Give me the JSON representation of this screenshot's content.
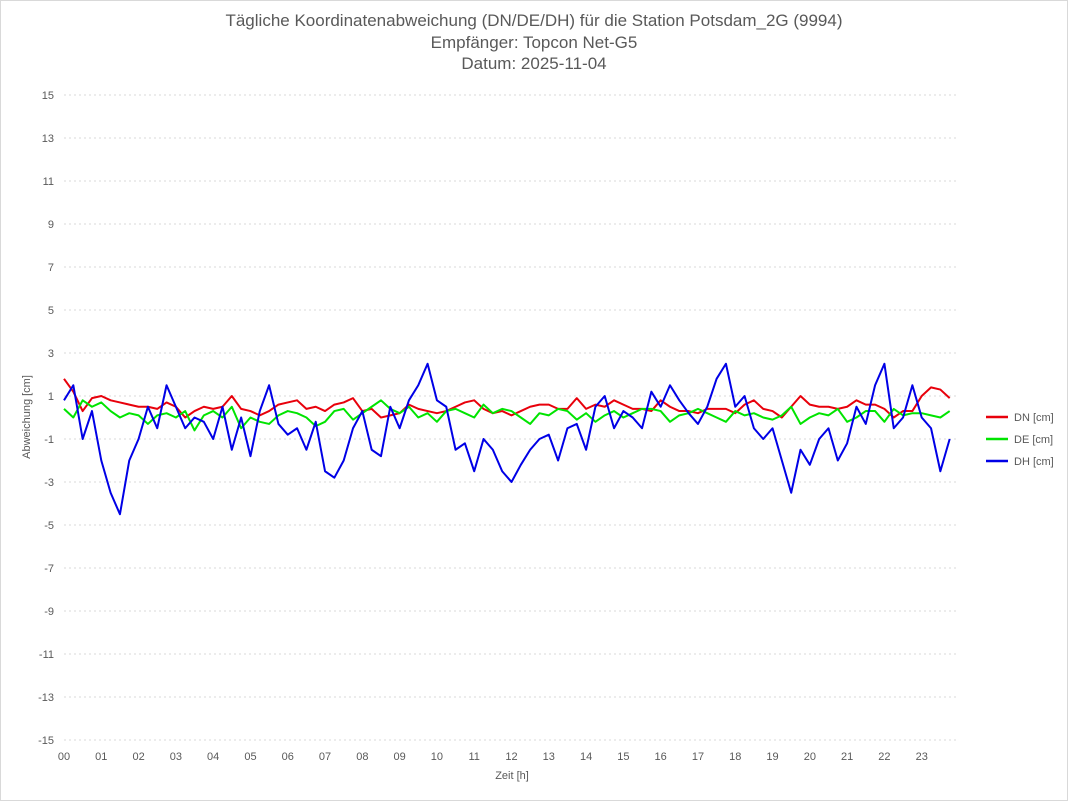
{
  "chart_data": {
    "type": "line",
    "title": "Tägliche Koordinatenabweichung (DN/DE/DH) für die Station Potsdam_2G (9994)",
    "subtitle_lines": [
      "Empfänger: Topcon Net-G5",
      "Datum: 2025-11-04"
    ],
    "xlabel": "Zeit [h]",
    "ylabel": "Abweichung [cm]",
    "xlim": [
      0,
      24
    ],
    "ylim": [
      -15,
      15
    ],
    "x_ticks": [
      "00",
      "01",
      "02",
      "03",
      "04",
      "05",
      "06",
      "07",
      "08",
      "09",
      "10",
      "11",
      "12",
      "13",
      "14",
      "15",
      "16",
      "17",
      "18",
      "19",
      "20",
      "21",
      "22",
      "23"
    ],
    "y_ticks": [
      "15",
      "13",
      "11",
      "9",
      "7",
      "5",
      "3",
      "1",
      "-1",
      "-3",
      "-5",
      "-7",
      "-9",
      "-11",
      "-13",
      "-15"
    ],
    "y_tick_values": [
      15,
      13,
      11,
      9,
      7,
      5,
      3,
      1,
      -1,
      -3,
      -5,
      -7,
      -9,
      -11,
      -13,
      -15
    ],
    "grid": true,
    "legend_position": "right",
    "sample_interval_h": 0.25,
    "series": [
      {
        "name": "DN [cm]",
        "color": "#e8000b",
        "values": [
          1.8,
          1.2,
          0.3,
          0.9,
          1.0,
          0.8,
          0.7,
          0.6,
          0.5,
          0.5,
          0.4,
          0.7,
          0.5,
          0.0,
          0.3,
          0.5,
          0.4,
          0.5,
          1.0,
          0.4,
          0.3,
          0.1,
          0.3,
          0.6,
          0.7,
          0.8,
          0.4,
          0.5,
          0.3,
          0.6,
          0.7,
          0.9,
          0.3,
          0.4,
          0.0,
          0.1,
          0.2,
          0.6,
          0.4,
          0.3,
          0.2,
          0.3,
          0.5,
          0.7,
          0.8,
          0.4,
          0.2,
          0.3,
          0.1,
          0.3,
          0.5,
          0.6,
          0.6,
          0.4,
          0.4,
          0.9,
          0.4,
          0.6,
          0.5,
          0.8,
          0.6,
          0.4,
          0.4,
          0.3,
          0.8,
          0.5,
          0.3,
          0.3,
          0.2,
          0.4,
          0.4,
          0.4,
          0.2,
          0.6,
          0.8,
          0.4,
          0.3,
          0.0,
          0.5,
          1.0,
          0.6,
          0.5,
          0.5,
          0.4,
          0.5,
          0.8,
          0.6,
          0.6,
          0.4,
          0.0,
          0.3,
          0.3,
          1.0,
          1.4,
          1.3,
          0.9
        ]
      },
      {
        "name": "DE [cm]",
        "color": "#00e400",
        "values": [
          0.4,
          0.0,
          0.8,
          0.5,
          0.7,
          0.3,
          0.0,
          0.2,
          0.1,
          -0.3,
          0.1,
          0.2,
          0.0,
          0.3,
          -0.6,
          0.1,
          0.3,
          0.0,
          0.5,
          -0.5,
          0.0,
          -0.2,
          -0.3,
          0.1,
          0.3,
          0.2,
          0.0,
          -0.4,
          -0.2,
          0.3,
          0.4,
          -0.1,
          0.2,
          0.5,
          0.8,
          0.4,
          0.2,
          0.5,
          0.0,
          0.2,
          -0.2,
          0.3,
          0.4,
          0.2,
          0.0,
          0.6,
          0.2,
          0.4,
          0.3,
          0.0,
          -0.3,
          0.2,
          0.1,
          0.4,
          0.3,
          -0.1,
          0.2,
          -0.2,
          0.1,
          0.3,
          0.0,
          0.2,
          0.4,
          0.4,
          0.3,
          -0.2,
          0.1,
          0.2,
          0.4,
          0.2,
          0.0,
          -0.2,
          0.3,
          0.1,
          0.2,
          0.0,
          -0.1,
          0.1,
          0.5,
          -0.3,
          0.0,
          0.2,
          0.1,
          0.4,
          -0.2,
          0.0,
          0.3,
          0.3,
          -0.2,
          0.4,
          0.1,
          0.2,
          0.2,
          0.1,
          0.0,
          0.3
        ]
      },
      {
        "name": "DH [cm]",
        "color": "#0000e6",
        "values": [
          0.8,
          1.5,
          -1.0,
          0.3,
          -2.0,
          -3.5,
          -4.5,
          -2.0,
          -1.0,
          0.5,
          -0.5,
          1.5,
          0.5,
          -0.5,
          0.0,
          -0.2,
          -1.0,
          0.5,
          -1.5,
          0.0,
          -1.8,
          0.3,
          1.5,
          -0.3,
          -0.8,
          -0.5,
          -1.5,
          -0.2,
          -2.5,
          -2.8,
          -2.0,
          -0.5,
          0.3,
          -1.5,
          -1.8,
          0.5,
          -0.5,
          0.8,
          1.5,
          2.5,
          0.8,
          0.5,
          -1.5,
          -1.2,
          -2.5,
          -1.0,
          -1.5,
          -2.5,
          -3.0,
          -2.2,
          -1.5,
          -1.0,
          -0.8,
          -2.0,
          -0.5,
          -0.3,
          -1.5,
          0.5,
          1.0,
          -0.5,
          0.3,
          0.0,
          -0.5,
          1.2,
          0.5,
          1.5,
          0.8,
          0.2,
          -0.3,
          0.5,
          1.8,
          2.5,
          0.5,
          1.0,
          -0.5,
          -1.0,
          -0.5,
          -2.0,
          -3.5,
          -1.5,
          -2.2,
          -1.0,
          -0.5,
          -2.0,
          -1.2,
          0.5,
          -0.3,
          1.5,
          2.5,
          -0.5,
          0.0,
          1.5,
          0.0,
          -0.5,
          -2.5,
          -1.0
        ]
      }
    ]
  }
}
